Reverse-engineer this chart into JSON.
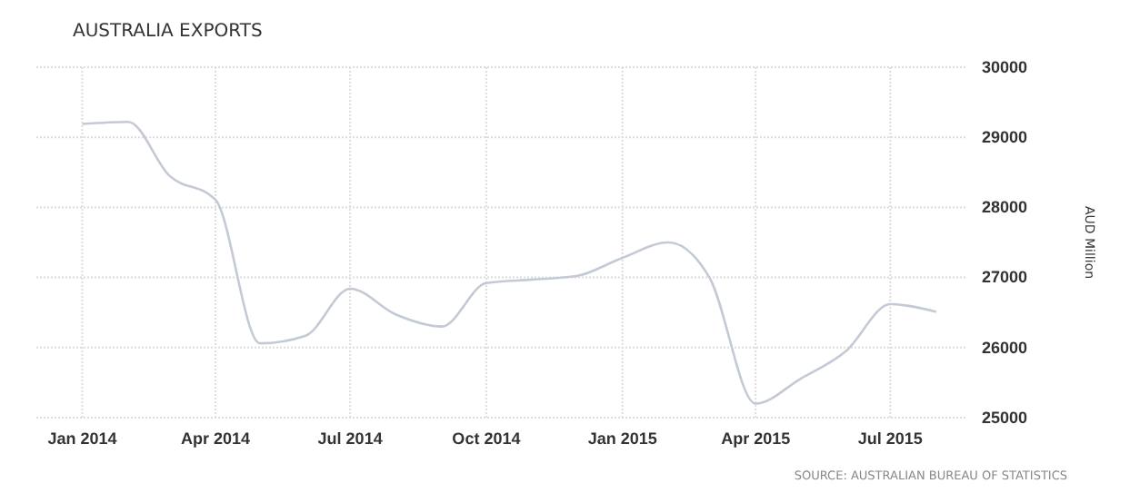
{
  "chart_data": {
    "type": "line",
    "title": "AUSTRALIA EXPORTS",
    "ylabel": "AUD Million",
    "x": [
      "2014-01",
      "2014-02",
      "2014-03",
      "2014-04",
      "2014-05",
      "2014-06",
      "2014-07",
      "2014-08",
      "2014-09",
      "2014-10",
      "2014-11",
      "2014-12",
      "2015-01",
      "2015-02",
      "2015-03",
      "2015-04",
      "2015-05",
      "2015-06",
      "2015-07",
      "2015-08"
    ],
    "series": [
      {
        "color": "#c3cad6",
        "values": [
          29190,
          29220,
          28450,
          28110,
          26060,
          26170,
          26840,
          26470,
          26300,
          26920,
          26970,
          27020,
          27280,
          27500,
          26990,
          25200,
          25550,
          25950,
          26620,
          26510
        ]
      }
    ],
    "xlim": [
      "2013-12-01",
      "2015-08-22"
    ],
    "xticks": [
      {
        "value": "2014-01",
        "label": "Jan 2014"
      },
      {
        "value": "2014-04",
        "label": "Apr 2014"
      },
      {
        "value": "2014-07",
        "label": "Jul 2014"
      },
      {
        "value": "2014-10",
        "label": "Oct 2014"
      },
      {
        "value": "2015-01",
        "label": "Jan 2015"
      },
      {
        "value": "2015-04",
        "label": "Apr 2015"
      },
      {
        "value": "2015-07",
        "label": "Jul 2015"
      }
    ],
    "ylim": [
      25000,
      30000
    ],
    "yticks": [
      25000,
      26000,
      27000,
      28000,
      29000,
      30000
    ],
    "grid": true,
    "marker": "none",
    "line_style": "solid",
    "annotations": [
      "SOURCE: AUSTRALIAN BUREAU OF STATISTICS"
    ]
  }
}
